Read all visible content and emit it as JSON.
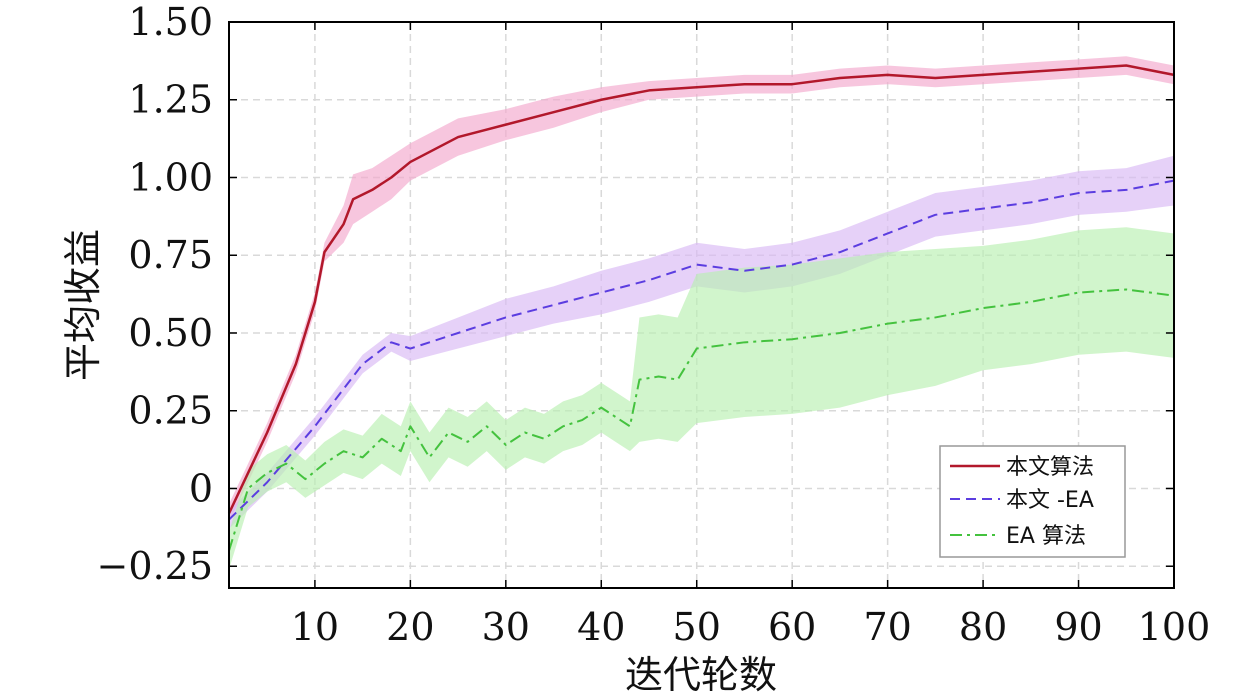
{
  "chart_data": {
    "type": "line",
    "xlabel": "迭代轮数",
    "ylabel": "平均收益",
    "xlim": [
      1,
      100
    ],
    "ylim": [
      -0.32,
      1.5
    ],
    "xticks": [
      10,
      20,
      30,
      40,
      50,
      60,
      70,
      80,
      90,
      100
    ],
    "xtick_labels": [
      "10",
      "20",
      "30",
      "40",
      "50",
      "60",
      "70",
      "80",
      "90",
      "100"
    ],
    "yticks": [
      -0.25,
      0,
      0.25,
      0.5,
      0.75,
      1.0,
      1.25,
      1.5
    ],
    "ytick_labels": [
      "−0.25",
      "0",
      "0.25",
      "0.50",
      "0.75",
      "1.00",
      "1.25",
      "1.50"
    ],
    "grid": true,
    "legend_position": "bottom-right",
    "series": [
      {
        "name": "本文算法",
        "color": "#b2182b",
        "band_color": "#f2a7cc",
        "dash": "solid",
        "x": [
          1,
          3,
          5,
          8,
          10,
          11,
          13,
          14,
          16,
          18,
          20,
          25,
          30,
          35,
          40,
          45,
          50,
          55,
          60,
          65,
          70,
          75,
          80,
          85,
          90,
          95,
          100
        ],
        "y": [
          -0.08,
          0.05,
          0.18,
          0.4,
          0.6,
          0.76,
          0.85,
          0.93,
          0.96,
          1.0,
          1.05,
          1.13,
          1.17,
          1.21,
          1.25,
          1.28,
          1.29,
          1.3,
          1.3,
          1.32,
          1.33,
          1.32,
          1.33,
          1.34,
          1.35,
          1.36,
          1.33
        ],
        "band": [
          0.03,
          0.03,
          0.03,
          0.03,
          0.03,
          0.03,
          0.06,
          0.08,
          0.07,
          0.07,
          0.06,
          0.06,
          0.05,
          0.05,
          0.04,
          0.03,
          0.03,
          0.03,
          0.03,
          0.03,
          0.03,
          0.03,
          0.03,
          0.03,
          0.03,
          0.03,
          0.03
        ]
      },
      {
        "name": "本文 -EA",
        "color": "#5b3de0",
        "band_color": "#d9b8f5",
        "dash": "dashed",
        "x": [
          1,
          5,
          10,
          15,
          18,
          20,
          25,
          30,
          35,
          40,
          45,
          50,
          55,
          60,
          65,
          70,
          75,
          80,
          85,
          90,
          95,
          100
        ],
        "y": [
          -0.1,
          0.02,
          0.2,
          0.4,
          0.47,
          0.45,
          0.5,
          0.55,
          0.59,
          0.63,
          0.67,
          0.72,
          0.7,
          0.72,
          0.76,
          0.82,
          0.88,
          0.9,
          0.92,
          0.95,
          0.96,
          0.99
        ],
        "band": [
          0.03,
          0.03,
          0.03,
          0.03,
          0.03,
          0.04,
          0.05,
          0.06,
          0.06,
          0.07,
          0.07,
          0.07,
          0.07,
          0.07,
          0.07,
          0.07,
          0.07,
          0.07,
          0.07,
          0.07,
          0.07,
          0.08
        ]
      },
      {
        "name": "EA 算法",
        "color": "#44c23e",
        "band_color": "#b8f0b0",
        "dash": "dashdot",
        "x": [
          1,
          3,
          5,
          7,
          9,
          11,
          13,
          15,
          17,
          19,
          20,
          22,
          24,
          26,
          28,
          30,
          32,
          34,
          36,
          38,
          40,
          42,
          43,
          44,
          46,
          48,
          50,
          55,
          60,
          65,
          70,
          75,
          80,
          85,
          90,
          95,
          100
        ],
        "y": [
          -0.2,
          0.0,
          0.05,
          0.08,
          0.03,
          0.08,
          0.12,
          0.1,
          0.16,
          0.12,
          0.2,
          0.1,
          0.18,
          0.15,
          0.2,
          0.14,
          0.18,
          0.16,
          0.2,
          0.22,
          0.26,
          0.22,
          0.2,
          0.35,
          0.36,
          0.35,
          0.45,
          0.47,
          0.48,
          0.5,
          0.53,
          0.55,
          0.58,
          0.6,
          0.63,
          0.64,
          0.62
        ],
        "band": [
          0.06,
          0.06,
          0.06,
          0.06,
          0.06,
          0.07,
          0.07,
          0.07,
          0.08,
          0.08,
          0.08,
          0.08,
          0.08,
          0.08,
          0.08,
          0.08,
          0.08,
          0.08,
          0.08,
          0.08,
          0.08,
          0.08,
          0.08,
          0.2,
          0.2,
          0.2,
          0.24,
          0.24,
          0.24,
          0.24,
          0.23,
          0.22,
          0.2,
          0.2,
          0.2,
          0.2,
          0.2
        ]
      }
    ]
  }
}
